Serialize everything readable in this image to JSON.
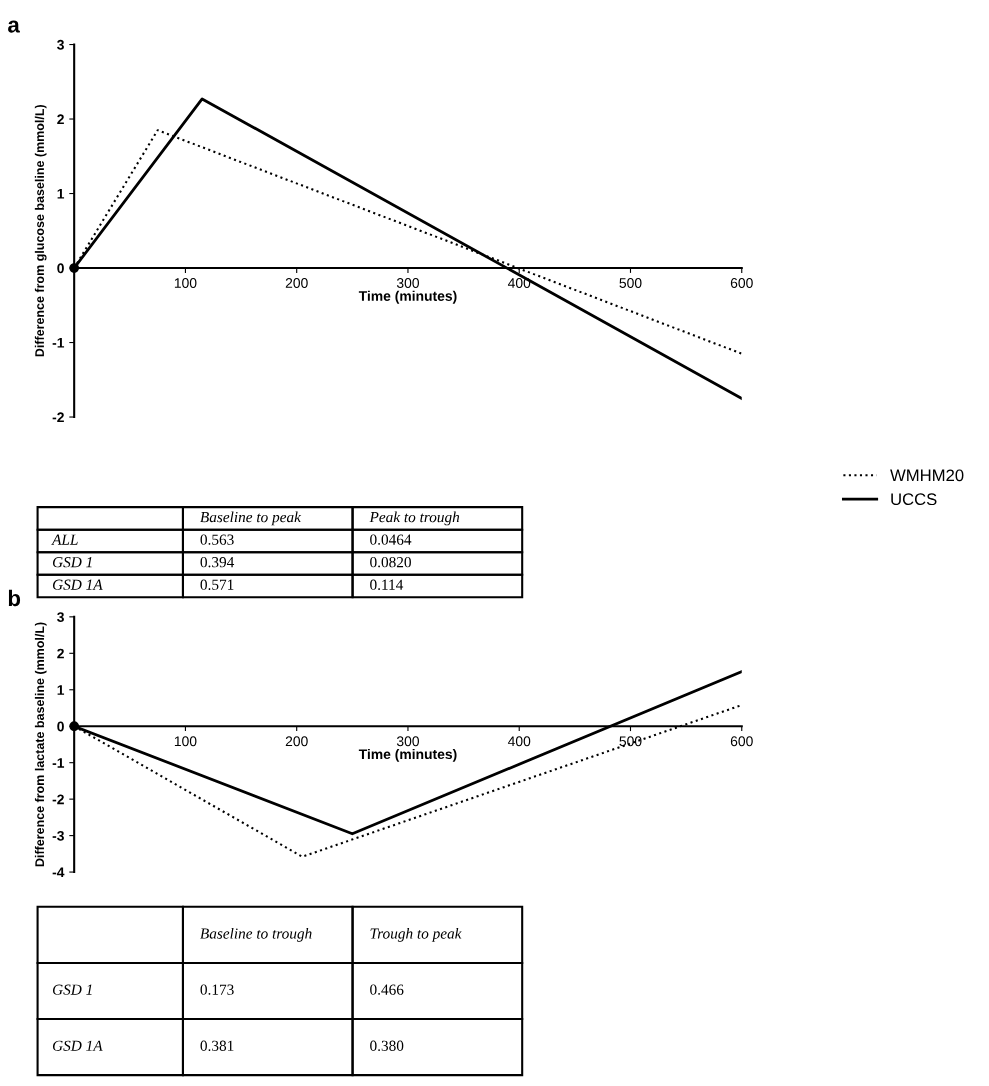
{
  "chart_data": [
    {
      "type": "line",
      "title": "a",
      "xlabel": "Time (minutes)",
      "ylabel": "Difference from glucose baseline (mmol/L)",
      "xlim": [
        0,
        600
      ],
      "xticks": [
        100,
        200,
        300,
        400,
        500,
        600
      ],
      "ylim": [
        -2,
        3
      ],
      "yticks": [
        -2,
        -1,
        0,
        1,
        2,
        3
      ],
      "legend": "right",
      "grid": false,
      "series": [
        {
          "name": "WMHM20",
          "color": "#000000",
          "line_style": "dotted",
          "x": [
            0,
            75,
            600
          ],
          "values": [
            0,
            1.85,
            -1.15
          ]
        },
        {
          "name": "UCCS",
          "color": "#000000",
          "line_style": "solid",
          "x": [
            0,
            115,
            600
          ],
          "values": [
            0,
            2.27,
            -1.75
          ]
        }
      ],
      "annotations": [
        "Baseline to peak",
        "Peak to trough",
        "ALL",
        "0.563",
        "0.0464",
        "GSD 1",
        "0.394",
        "0.0820",
        "GSD 1A",
        "0.571",
        "0.114"
      ]
    },
    {
      "type": "line",
      "title": "b",
      "xlabel": "Time (minutes)",
      "ylabel": "Difference from lactate baseline (mmol/L)",
      "xlim": [
        0,
        600
      ],
      "xticks": [
        100,
        200,
        300,
        400,
        500,
        600
      ],
      "ylim": [
        -4,
        3
      ],
      "yticks": [
        -4,
        -3,
        -2,
        -1,
        0,
        1,
        2,
        3
      ],
      "grid": false,
      "series": [
        {
          "color": "#000000",
          "line_style": "dotted",
          "x": [
            0,
            205,
            600
          ],
          "values": [
            0,
            -3.58,
            0.58
          ]
        },
        {
          "color": "#000000",
          "line_style": "solid",
          "x": [
            0,
            250,
            600
          ],
          "values": [
            0,
            -2.95,
            1.5
          ]
        }
      ],
      "annotations": [
        "Baseline to trough",
        "Trough to peak",
        "GSD 1",
        "0.173",
        "0.466",
        "GSD 1A",
        "0.381",
        "0.380"
      ]
    }
  ]
}
